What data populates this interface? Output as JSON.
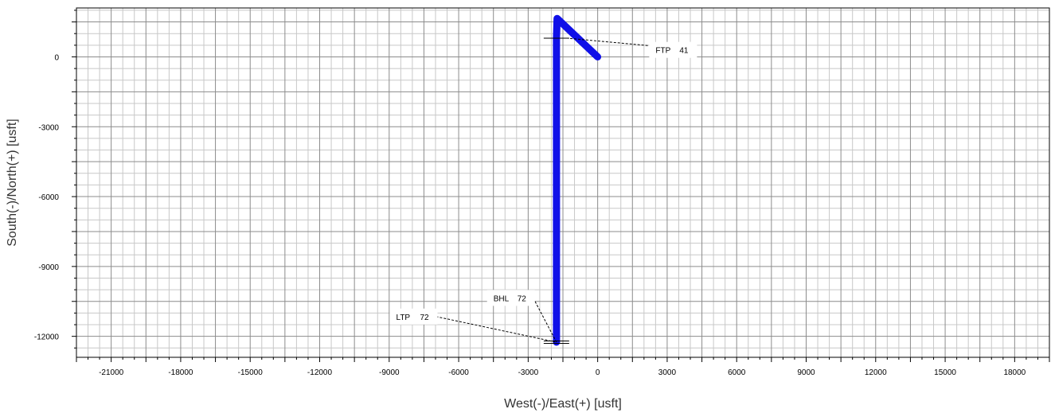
{
  "chart_data": {
    "type": "line",
    "xlabel": "West(-)/East(+)  [usft]",
    "ylabel": "South(-)/North(+)  [usft]",
    "xlim": [
      -22500,
      19500
    ],
    "ylim": [
      -12900,
      2100
    ],
    "x_ticks": [
      -21000,
      -18000,
      -15000,
      -12000,
      -9000,
      -6000,
      -3000,
      0,
      3000,
      6000,
      9000,
      12000,
      15000,
      18000
    ],
    "y_ticks": [
      0,
      -3000,
      -6000,
      -9000,
      -12000
    ],
    "grid": true,
    "series": [
      {
        "color": "#1010e8",
        "points": [
          [
            0,
            0
          ],
          [
            -1750,
            1650
          ],
          [
            -1780,
            800
          ],
          [
            -1780,
            -12250
          ]
        ]
      }
    ],
    "annotations": [
      {
        "label": "FTP",
        "value": "41",
        "label_xy": [
          2500,
          300
        ],
        "target": [
          -1300,
          800
        ]
      },
      {
        "label": "BHL",
        "value": "72",
        "label_xy": [
          -4500,
          -10350
        ],
        "target": [
          -1780,
          -12250
        ]
      },
      {
        "label": "LTP",
        "value": "72",
        "label_xy": [
          -8700,
          -11150
        ],
        "target": [
          -1780,
          -12250
        ]
      }
    ],
    "markers": [
      [
        -1780,
        800
      ],
      [
        -1780,
        -12200
      ],
      [
        -1780,
        -12300
      ]
    ]
  }
}
